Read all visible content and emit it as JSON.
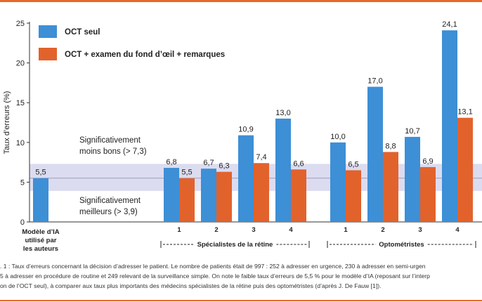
{
  "colors": {
    "oct_only": "#3d8fd6",
    "oct_plus": "#e2622c",
    "band": "#dcdcf0",
    "accent": "#e46a2a"
  },
  "chart_data": {
    "type": "bar",
    "ylabel": "Taux d’erreurs (%)",
    "ylim": [
      0,
      25
    ],
    "yticks": [
      "0",
      "5",
      "10",
      "15",
      "20",
      "25"
    ],
    "grid": false,
    "legend_position": "top-left",
    "series": [
      {
        "name": "OCT seul",
        "color": "#3d8fd6"
      },
      {
        "name": "OCT + examen du fond d’œil + remarques",
        "color": "#e2622c"
      }
    ],
    "ai_model": {
      "label_lines": [
        "Modèle d’IA",
        "utilisé par",
        "les auteurs"
      ],
      "value": 5.5,
      "value_label": "5,5"
    },
    "groups": [
      {
        "label": "Spécialistes de la rétine",
        "categories": [
          "1",
          "2",
          "3",
          "4"
        ],
        "oct_only": [
          6.8,
          6.7,
          10.9,
          13.0
        ],
        "oct_only_labels": [
          "6,8",
          "6,7",
          "10,9",
          "13,0"
        ],
        "oct_plus": [
          5.5,
          6.3,
          7.4,
          6.6
        ],
        "oct_plus_labels": [
          "5,5",
          "6,3",
          "7,4",
          "6,6"
        ]
      },
      {
        "label": "Optométristes",
        "categories": [
          "1",
          "2",
          "3",
          "4"
        ],
        "oct_only": [
          10.0,
          17.0,
          10.7,
          24.1
        ],
        "oct_only_labels": [
          "10,0",
          "17,0",
          "10,7",
          "24,1"
        ],
        "oct_plus": [
          6.5,
          8.8,
          6.9,
          13.1
        ],
        "oct_plus_labels": [
          "6,5",
          "8,8",
          "6,9",
          "13,1"
        ]
      }
    ],
    "band": {
      "lower": 3.9,
      "upper": 7.3,
      "midline": 5.5
    },
    "annotations": {
      "worse": [
        "Significativement",
        "moins bons (> 7,3)"
      ],
      "better": [
        "Significativement",
        "meilleurs (> 3,9)"
      ]
    }
  },
  "caption": {
    "lines": [
      ". 1 : Taux d’erreurs concernant la décision d’adresser le patient. Le nombre de patients était de 997 : 252 à adresser en urgence, 230 à adresser en semi-urgen",
      "5 à adresser en procédure de routine et 249 relevant de la surveillance simple. On note le faible taux d’erreurs de 5,5 % pour le modèle d’IA (reposant sur l’interp",
      "on de l’OCT seul), à comparer aux taux plus importants des médecins spécialistes de la rétine puis des optométristes (d’après J. De Fauw [1])."
    ]
  }
}
